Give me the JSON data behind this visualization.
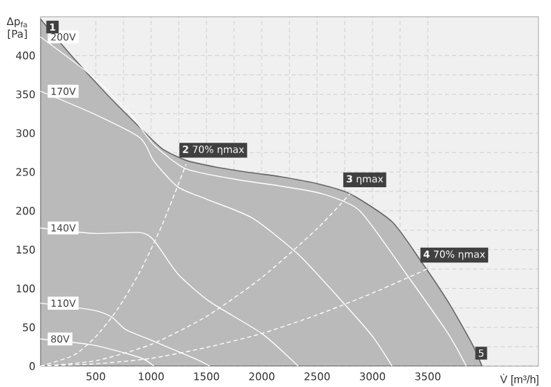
{
  "chart_data": {
    "type": "line",
    "xlabel": "V̇ [m³/h]",
    "ylabel": "Δp$_{fa}$ [Pa]",
    "xlim": [
      0,
      4500
    ],
    "ylim": [
      0,
      450
    ],
    "xticks": [
      500,
      1000,
      1500,
      2000,
      2500,
      3000,
      3500
    ],
    "yticks": [
      0,
      50,
      100,
      150,
      200,
      250,
      300,
      350,
      400
    ],
    "grid": true,
    "legend": "left",
    "marker": "none",
    "series": [
      {
        "type": "area",
        "color": "#bababa",
        "x": [
          0,
          266,
          600,
          900,
          1100,
          1316,
          1600,
          1911,
          2165,
          2500,
          2797,
          3177,
          3430,
          3683,
          3899,
          3990
        ],
        "values": [
          447,
          402,
          350,
          307,
          280,
          265,
          256,
          249,
          244,
          235,
          222,
          186,
          137,
          83,
          29,
          0
        ]
      },
      {
        "name": "200V",
        "color": "#ffffff",
        "x": [
          0,
          480,
          810,
          1025,
          1316,
          1785,
          2165,
          2544,
          2886,
          3304,
          3683,
          3848
        ],
        "values": [
          424,
          372,
          325,
          285,
          254,
          240,
          232,
          222,
          200,
          119,
          42,
          0
        ]
      },
      {
        "name": "170V",
        "color": "#ffffff",
        "x": [
          0,
          480,
          900,
          1025,
          1240,
          1500,
          1911,
          2329,
          2759,
          3013,
          3177
        ],
        "values": [
          354,
          325,
          294,
          264,
          231,
          215,
          191,
          144,
          78,
          36,
          0
        ]
      },
      {
        "name": "140V",
        "color": "#ffffff",
        "x": [
          0,
          475,
          900,
          1025,
          1240,
          1530,
          2000,
          2329
        ],
        "values": [
          178,
          171,
          172,
          162,
          119,
          83,
          42,
          0
        ]
      },
      {
        "name": "110V",
        "color": "#ffffff",
        "x": [
          0,
          480,
          645,
          772,
          1025,
          1405,
          1530
        ],
        "values": [
          81,
          72,
          63,
          47,
          32,
          9,
          0
        ]
      },
      {
        "name": "80V",
        "color": "#ffffff",
        "x": [
          0,
          480,
          900,
          1025
        ],
        "values": [
          35,
          27,
          11,
          0
        ]
      },
      {
        "color": "#ffffff",
        "line_style": "dashed",
        "x": [
          0,
          300,
          500,
          700,
          900,
          1100,
          1316
        ],
        "values": [
          0,
          14,
          38,
          74,
          122,
          182,
          260
        ]
      },
      {
        "color": "#ffffff",
        "line_style": "dashed",
        "x": [
          0,
          500,
          1000,
          1500,
          2000,
          2500,
          2797
        ],
        "values": [
          0,
          7,
          28,
          64,
          114,
          177,
          222
        ]
      },
      {
        "color": "#ffffff",
        "line_style": "dashed",
        "x": [
          0,
          500,
          1000,
          1500,
          2000,
          2500,
          3000,
          3494
        ],
        "values": [
          0,
          3,
          10,
          24,
          42,
          66,
          94,
          125
        ]
      }
    ],
    "annotations": [
      {
        "text": "1",
        "x": 0,
        "y": 447
      },
      {
        "text": "**2** 70% ηmax",
        "x": 1316,
        "y": 260
      },
      {
        "text": "**3** ηmax",
        "x": 2797,
        "y": 222
      },
      {
        "text": "**4** 70% ηmax",
        "x": 3494,
        "y": 125
      },
      {
        "text": "5",
        "x": 3990,
        "y": 0
      }
    ]
  }
}
